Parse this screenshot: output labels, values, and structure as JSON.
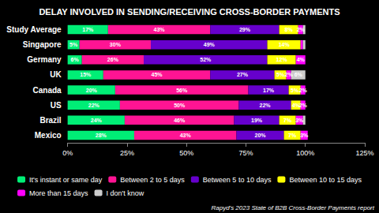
{
  "chart_data": {
    "type": "bar",
    "title": "DELAY INVOLVED IN SENDING/RECEIVING CROSS-BORDER PAYMENTS",
    "orientation": "horizontal",
    "stacked": true,
    "data_labels": true,
    "grid": false,
    "legend": "bottom",
    "categories": [
      "Study Average",
      "Singapore",
      "Germany",
      "UK",
      "Canada",
      "US",
      "Brazil",
      "Mexico"
    ],
    "xlim": [
      0,
      125
    ],
    "xticks": [
      {
        "value": 0,
        "label": "0%"
      },
      {
        "value": 25,
        "label": "25%"
      },
      {
        "value": 50,
        "label": "50%"
      },
      {
        "value": 75,
        "label": "75%"
      },
      {
        "value": 100,
        "label": "100%"
      },
      {
        "value": 125,
        "label": "125%"
      }
    ],
    "series": [
      {
        "name": "It's instant or same day",
        "color": "#00EE76",
        "values": [
          17,
          5,
          6,
          15,
          20,
          22,
          24,
          28
        ],
        "value_labels": [
          "17%",
          "5%",
          "6%",
          "15%",
          "20%",
          "22%",
          "24%",
          "28%"
        ]
      },
      {
        "name": "Between 2 to 5 days",
        "color": "#FF1493",
        "values": [
          43,
          30,
          26,
          45,
          56,
          50,
          46,
          43
        ],
        "value_labels": [
          "43%",
          "30%",
          "26%",
          "45%",
          "56%",
          "50%",
          "46%",
          "43%"
        ]
      },
      {
        "name": "Between 5 to 10 days",
        "color": "#6600CC",
        "values": [
          29,
          49,
          52,
          27,
          17,
          22,
          19,
          20
        ],
        "value_labels": [
          "29%",
          "49%",
          "52%",
          "27%",
          "17%",
          "22%",
          "19%",
          "20%"
        ]
      },
      {
        "name": "Between 10 to 15 days",
        "color": "#FFFF00",
        "values": [
          8,
          14,
          12,
          5,
          5,
          4,
          7,
          7
        ],
        "value_labels": [
          "8%",
          "14%",
          "12%",
          "5%",
          "5%",
          "4%",
          "7%",
          "7%"
        ]
      },
      {
        "name": "More than 15 days",
        "color": "#FF00FF",
        "values": [
          2,
          1,
          4,
          2,
          2,
          2,
          3,
          3
        ],
        "value_labels": [
          "2%",
          null,
          "4%",
          "2%",
          "2%",
          "2%",
          "3%",
          "3%"
        ]
      },
      {
        "name": "I don't know",
        "color": "#CCCCCC",
        "values": [
          1,
          1,
          0,
          6,
          0,
          0,
          1,
          0
        ],
        "value_labels": [
          null,
          null,
          null,
          "6%",
          null,
          null,
          null,
          null
        ]
      }
    ],
    "annotations": [
      "Rapyd's 2023 State of B2B Cross-Border Payments report"
    ]
  }
}
